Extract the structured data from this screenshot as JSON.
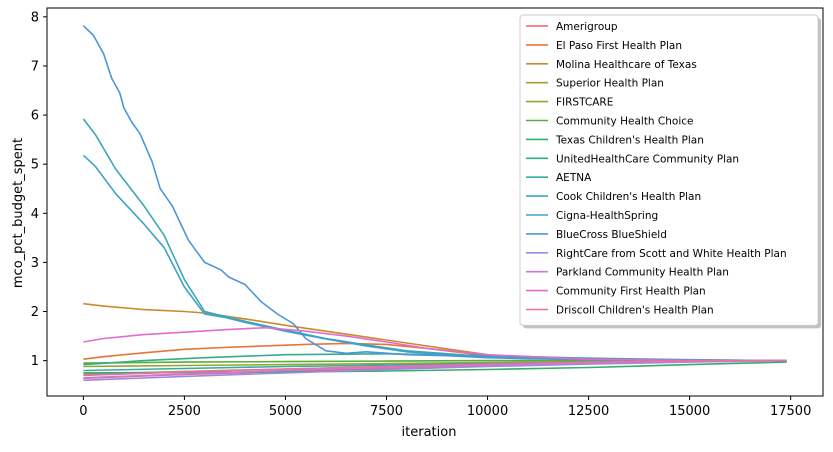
{
  "chart_data": {
    "type": "line",
    "xlabel": "iteration",
    "ylabel": "mco_pct_budget_spent",
    "xlim": [
      -900,
      18300
    ],
    "ylim": [
      0.28,
      8.18
    ],
    "xticks": [
      0,
      2500,
      5000,
      7500,
      10000,
      12500,
      15000,
      17500
    ],
    "yticks": [
      1,
      2,
      3,
      4,
      5,
      6,
      7,
      8
    ],
    "grid": false,
    "legend_position": "top-right",
    "series": [
      {
        "name": "Amerigroup",
        "color": "#e8646f",
        "x": [
          0,
          2500,
          5000,
          7500,
          10000,
          12500,
          15000,
          17400
        ],
        "y": [
          0.64,
          0.72,
          0.78,
          0.84,
          0.9,
          0.95,
          0.98,
          1.0
        ]
      },
      {
        "name": "El Paso First Health Plan",
        "color": "#e8743b",
        "x": [
          0,
          500,
          1500,
          2500,
          3500,
          4500,
          5500,
          6500,
          7500,
          8500,
          10000,
          12500,
          15000,
          17400
        ],
        "y": [
          1.03,
          1.08,
          1.16,
          1.23,
          1.27,
          1.3,
          1.33,
          1.35,
          1.33,
          1.25,
          1.1,
          1.02,
          1.0,
          1.0
        ]
      },
      {
        "name": "Molina Healthcare of Texas",
        "color": "#c98a2e",
        "x": [
          0,
          500,
          1500,
          2500,
          3000,
          4000,
          5000,
          6000,
          7000,
          8000,
          9000,
          10000,
          11000,
          12500,
          15000,
          17400
        ],
        "y": [
          2.16,
          2.11,
          2.04,
          2.0,
          1.97,
          1.85,
          1.72,
          1.6,
          1.48,
          1.36,
          1.24,
          1.12,
          1.05,
          1.0,
          1.0,
          1.0
        ]
      },
      {
        "name": "Superior Health Plan",
        "color": "#aa9a35",
        "x": [
          0,
          2500,
          5000,
          7500,
          10000,
          12500,
          15000,
          17400
        ],
        "y": [
          0.72,
          0.78,
          0.83,
          0.87,
          0.92,
          0.96,
          0.99,
          1.0
        ]
      },
      {
        "name": "FIRSTCARE",
        "color": "#8fa635",
        "x": [
          0,
          2500,
          5000,
          7500,
          10000,
          12500,
          15000,
          17400
        ],
        "y": [
          0.88,
          0.9,
          0.92,
          0.94,
          0.96,
          0.98,
          0.99,
          1.0
        ]
      },
      {
        "name": "Community Health Choice",
        "color": "#59ad3a",
        "x": [
          0,
          2500,
          5000,
          7500,
          10000,
          12500,
          15000,
          17400
        ],
        "y": [
          0.95,
          0.97,
          0.98,
          0.99,
          1.0,
          1.0,
          1.0,
          1.0
        ]
      },
      {
        "name": "Texas Children's Health Plan",
        "color": "#36ad6a",
        "x": [
          0,
          2500,
          5000,
          7500,
          10000,
          12500,
          15000,
          17400
        ],
        "y": [
          0.75,
          0.76,
          0.77,
          0.79,
          0.82,
          0.86,
          0.92,
          0.97
        ]
      },
      {
        "name": "UnitedHealthCare Community Plan",
        "color": "#37ab8c",
        "x": [
          0,
          1500,
          3000,
          5000,
          7500,
          10000,
          12500,
          15000,
          17400
        ],
        "y": [
          0.92,
          1.0,
          1.06,
          1.12,
          1.14,
          1.1,
          1.05,
          1.02,
          1.0
        ]
      },
      {
        "name": "AETNA",
        "color": "#38aa9f",
        "x": [
          0,
          2500,
          5000,
          7500,
          10000,
          12500,
          15000,
          17400
        ],
        "y": [
          0.8,
          0.84,
          0.88,
          0.91,
          0.94,
          0.97,
          0.99,
          1.0
        ]
      },
      {
        "name": "Cook Children's Health Plan",
        "color": "#3aa8b5",
        "x": [
          0,
          300,
          800,
          1500,
          2000,
          2500,
          3000,
          3500,
          4000,
          5000,
          6000,
          7000,
          8000,
          10000,
          12500,
          15000,
          17400
        ],
        "y": [
          5.92,
          5.6,
          4.9,
          4.15,
          3.55,
          2.65,
          2.0,
          1.9,
          1.8,
          1.62,
          1.45,
          1.32,
          1.2,
          1.08,
          1.03,
          1.0,
          1.0
        ]
      },
      {
        "name": "Cigna-HealthSpring",
        "color": "#3ea2c8",
        "x": [
          0,
          300,
          800,
          1500,
          2000,
          2500,
          3000,
          3500,
          4000,
          5000,
          6000,
          7000,
          8000,
          10000,
          12500,
          15000,
          17400
        ],
        "y": [
          5.18,
          4.95,
          4.4,
          3.78,
          3.3,
          2.5,
          1.95,
          1.88,
          1.78,
          1.6,
          1.44,
          1.3,
          1.18,
          1.07,
          1.02,
          1.0,
          1.0
        ]
      },
      {
        "name": "BlueCross BlueShield",
        "color": "#4c96dc",
        "x": [
          0,
          250,
          500,
          700,
          900,
          1000,
          1200,
          1400,
          1700,
          1900,
          2200,
          2400,
          2600,
          3000,
          3400,
          3600,
          4000,
          4400,
          4800,
          5200,
          5500,
          6000,
          6500,
          7000,
          8000,
          9000,
          10000,
          11000,
          12500,
          14000,
          15500,
          17400
        ],
        "y": [
          7.82,
          7.62,
          7.25,
          6.75,
          6.45,
          6.15,
          5.85,
          5.62,
          5.05,
          4.5,
          4.15,
          3.8,
          3.45,
          3.0,
          2.85,
          2.7,
          2.55,
          2.2,
          1.95,
          1.75,
          1.45,
          1.2,
          1.15,
          1.18,
          1.12,
          1.1,
          1.06,
          1.04,
          1.03,
          1.02,
          1.01,
          1.0
        ]
      },
      {
        "name": "RightCare from Scott and White Health Plan",
        "color": "#9a8ae0",
        "x": [
          0,
          2500,
          5000,
          7500,
          10000,
          12500,
          15000,
          17400
        ],
        "y": [
          0.6,
          0.68,
          0.75,
          0.82,
          0.88,
          0.93,
          0.97,
          1.0
        ]
      },
      {
        "name": "Parkland Community Health Plan",
        "color": "#c97ad9",
        "x": [
          0,
          2500,
          5000,
          7500,
          10000,
          12500,
          15000,
          17400
        ],
        "y": [
          0.65,
          0.73,
          0.8,
          0.86,
          0.91,
          0.95,
          0.98,
          1.0
        ]
      },
      {
        "name": "Community First Health Plan",
        "color": "#e06cce",
        "x": [
          0,
          500,
          1500,
          2500,
          3500,
          4500,
          5500,
          6500,
          7500,
          8500,
          10000,
          12500,
          15000,
          17400
        ],
        "y": [
          1.38,
          1.45,
          1.53,
          1.58,
          1.63,
          1.67,
          1.6,
          1.5,
          1.38,
          1.25,
          1.12,
          1.03,
          1.0,
          1.0
        ]
      },
      {
        "name": "Driscoll Children's Health Plan",
        "color": "#e870a6",
        "x": [
          0,
          2500,
          5000,
          7500,
          10000,
          12500,
          15000,
          17400
        ],
        "y": [
          0.7,
          0.77,
          0.83,
          0.88,
          0.93,
          0.97,
          0.99,
          1.0
        ]
      }
    ]
  }
}
